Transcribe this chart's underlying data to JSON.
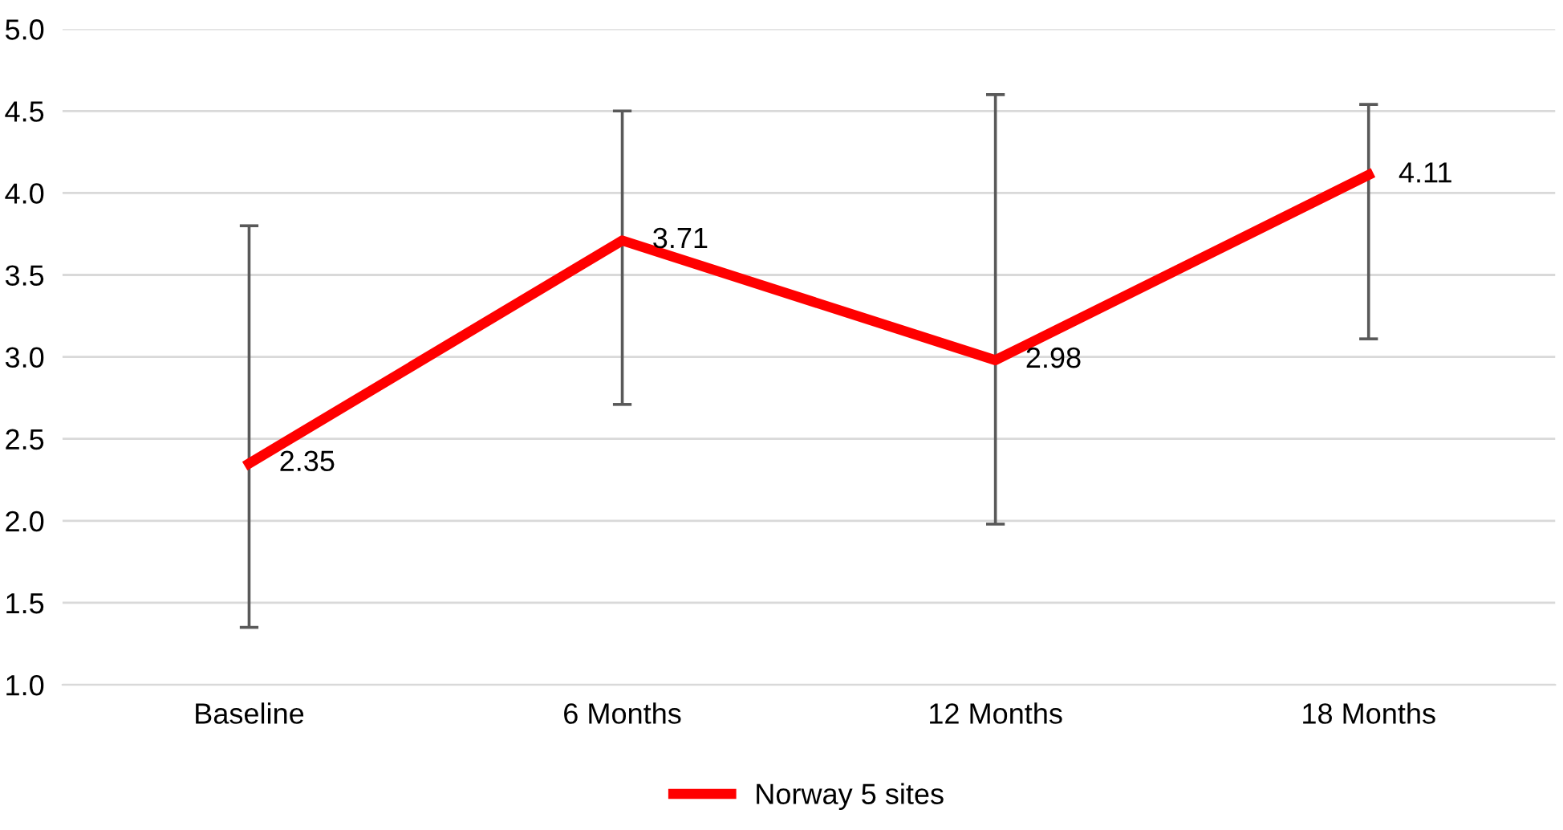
{
  "chart_data": {
    "type": "line",
    "categories": [
      "Baseline",
      "6 Months",
      "12 Months",
      "18 Months"
    ],
    "series": [
      {
        "name": "Norway 5 sites",
        "color": "#ff0000",
        "values": [
          2.35,
          3.71,
          2.98,
          4.11
        ],
        "errors": [
          [
            1.35,
            3.8
          ],
          [
            2.71,
            4.5
          ],
          [
            1.98,
            4.6
          ],
          [
            3.11,
            4.54
          ]
        ]
      }
    ],
    "ylim": [
      1.0,
      5.0
    ],
    "yticks": [
      {
        "value": 1.0,
        "label": "1.0"
      },
      {
        "value": 1.5,
        "label": "1.5"
      },
      {
        "value": 2.0,
        "label": "2.0"
      },
      {
        "value": 2.5,
        "label": "2.5"
      },
      {
        "value": 3.0,
        "label": "3.0"
      },
      {
        "value": 3.5,
        "label": "3.5"
      },
      {
        "value": 4.0,
        "label": "4.0"
      },
      {
        "value": 4.5,
        "label": "4.5"
      },
      {
        "value": 5.0,
        "label": "5.0"
      }
    ],
    "grid": "y",
    "legend": "bottom",
    "data_labels": true,
    "marker": "none",
    "line_style": "solid"
  }
}
